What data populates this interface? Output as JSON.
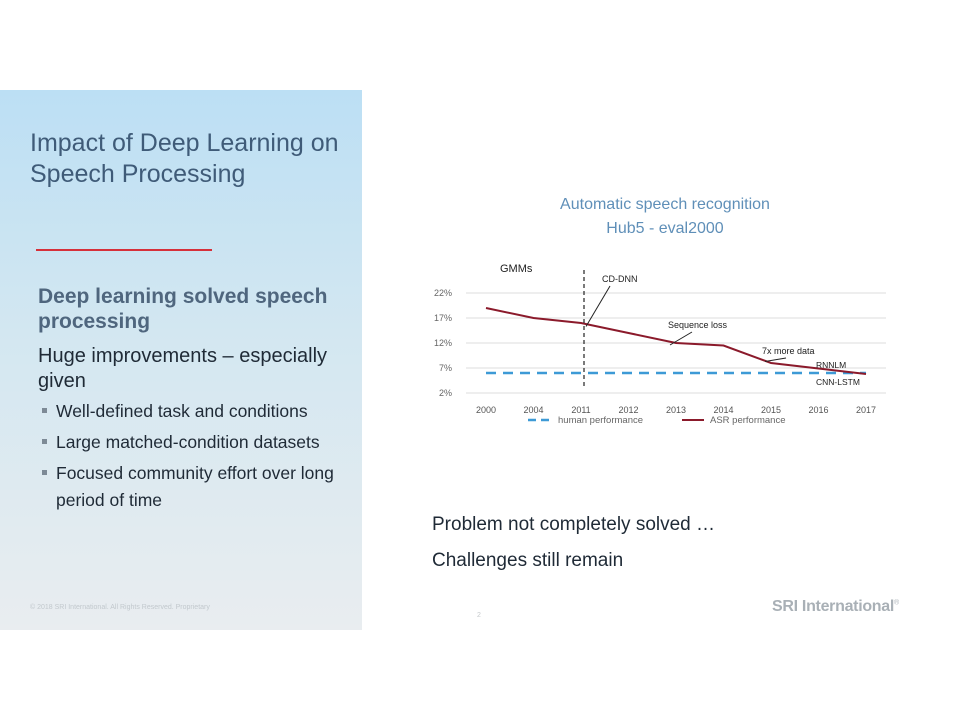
{
  "slide": {
    "title": "Impact of Deep Learning on Speech Processing",
    "heading": "Deep learning solved speech processing",
    "subheading": "Huge improvements – especially given",
    "bullets": [
      "Well-defined task and conditions",
      "Large matched-condition datasets",
      "Focused community effort over long period of time"
    ],
    "copyright": "© 2018 SRI International. All Rights Reserved. Proprietary",
    "right_lines": [
      "Problem not completely solved …",
      "Challenges still remain"
    ],
    "page_number": "2",
    "logo_text": "SRI International",
    "logo_mark": "®",
    "accent_color": "#d6303a",
    "title_color": "#3f5b78"
  },
  "chart_data": {
    "type": "line",
    "title": "Automatic speech recognition",
    "subtitle": "Hub5 - eval2000",
    "categories": [
      "2000",
      "2004",
      "2011",
      "2012",
      "2013",
      "2014",
      "2015",
      "2016",
      "2017"
    ],
    "y_ticks": [
      "22%",
      "17%",
      "12%",
      "7%",
      "2%"
    ],
    "ylim": [
      2,
      22
    ],
    "grid": true,
    "series": [
      {
        "name": "human performance",
        "style": "dashed",
        "color": "#3d9ad6",
        "values": [
          6,
          6,
          6,
          6,
          6,
          6,
          6,
          6,
          6
        ]
      },
      {
        "name": "ASR performance",
        "style": "solid",
        "color": "#8b1a2b",
        "values": [
          19,
          17,
          16,
          14,
          12,
          11.5,
          8,
          6.9,
          5.8
        ]
      }
    ],
    "legend_position": "bottom",
    "annotations": {
      "gmms": "GMMs",
      "cd_dnn": "CD-DNN",
      "sequence_loss": "Sequence loss",
      "more_data": "7x more data",
      "rnnlm": "RNNLM",
      "cnn_lstm": "CNN-LSTM"
    }
  }
}
